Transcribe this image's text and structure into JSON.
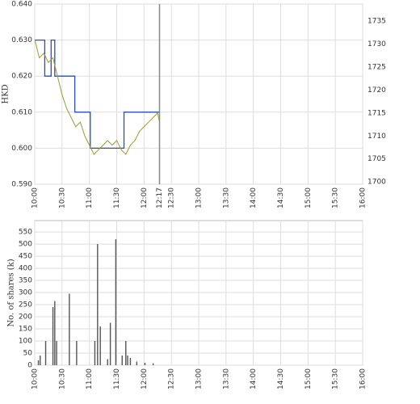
{
  "chart_data": [
    {
      "type": "line",
      "ylabel": "HKD",
      "xlim": [
        "10:00",
        "16:00"
      ],
      "xticks": [
        "10:00",
        "10:30",
        "11:00",
        "11:30",
        "12:00",
        "12:30",
        "13:00",
        "13:30",
        "14:00",
        "14:30",
        "15:00",
        "15:30",
        "16:00"
      ],
      "now": "12:17",
      "ylim": [
        0.59,
        0.64
      ],
      "yticks": [
        {
          "value": 0.59,
          "label": "0.590"
        },
        {
          "value": 0.6,
          "label": "0.600"
        },
        {
          "value": 0.61,
          "label": "0.610"
        },
        {
          "value": 0.62,
          "label": "0.620"
        },
        {
          "value": 0.63,
          "label": "0.630"
        },
        {
          "value": 0.64,
          "label": "0.640"
        }
      ],
      "y2lim": [
        1699.5,
        1738.7
      ],
      "y2ticks": [
        1700,
        1705,
        1710,
        1715,
        1720,
        1725,
        1730,
        1735
      ],
      "grid": true,
      "series": [
        {
          "color": "#2a4fb0",
          "step": true,
          "x": [
            "10:00",
            "10:11",
            "10:18",
            "10:22",
            "10:44",
            "11:01",
            "11:38",
            "12:17"
          ],
          "values": [
            0.63,
            0.62,
            0.63,
            0.62,
            0.61,
            0.6,
            0.61,
            0.61
          ]
        },
        {
          "color": "#9a9a3a",
          "axis": "y2",
          "x": [
            "10:00",
            "10:05",
            "10:10",
            "10:15",
            "10:20",
            "10:25",
            "10:30",
            "10:35",
            "10:40",
            "10:45",
            "10:50",
            "10:55",
            "11:00",
            "11:05",
            "11:10",
            "11:15",
            "11:20",
            "11:25",
            "11:30",
            "11:35",
            "11:40",
            "11:45",
            "11:50",
            "11:55",
            "12:00",
            "12:05",
            "12:10",
            "12:15",
            "12:17"
          ],
          "values": [
            1731,
            1727,
            1728,
            1726,
            1727,
            1723,
            1719,
            1716,
            1714,
            1712,
            1713,
            1710,
            1708,
            1706,
            1707,
            1708,
            1709,
            1708,
            1709,
            1707,
            1706,
            1708,
            1709,
            1711,
            1712,
            1713,
            1714,
            1715,
            1713
          ]
        }
      ]
    },
    {
      "type": "bar",
      "ylabel": "No. of shares (k)",
      "xlim": [
        "10:00",
        "16:00"
      ],
      "xticks": [
        "10:00",
        "10:30",
        "11:00",
        "11:30",
        "12:00",
        "12:30",
        "13:00",
        "13:30",
        "14:00",
        "14:30",
        "15:00",
        "15:30",
        "16:00"
      ],
      "ylim": [
        0,
        597
      ],
      "yticks": [
        0,
        50,
        100,
        150,
        200,
        250,
        300,
        350,
        400,
        450,
        500,
        550
      ],
      "grid": true,
      "color": "#555555",
      "x": [
        "10:04",
        "10:06",
        "10:12",
        "10:20",
        "10:22",
        "10:24",
        "10:38",
        "10:46",
        "11:06",
        "11:09",
        "11:12",
        "11:20",
        "11:23",
        "11:29",
        "11:36",
        "11:40",
        "11:42",
        "11:45",
        "11:52",
        "12:01",
        "12:10"
      ],
      "values": [
        20,
        40,
        100,
        240,
        265,
        100,
        295,
        100,
        100,
        500,
        160,
        25,
        175,
        520,
        40,
        100,
        40,
        30,
        15,
        10,
        8
      ]
    }
  ]
}
